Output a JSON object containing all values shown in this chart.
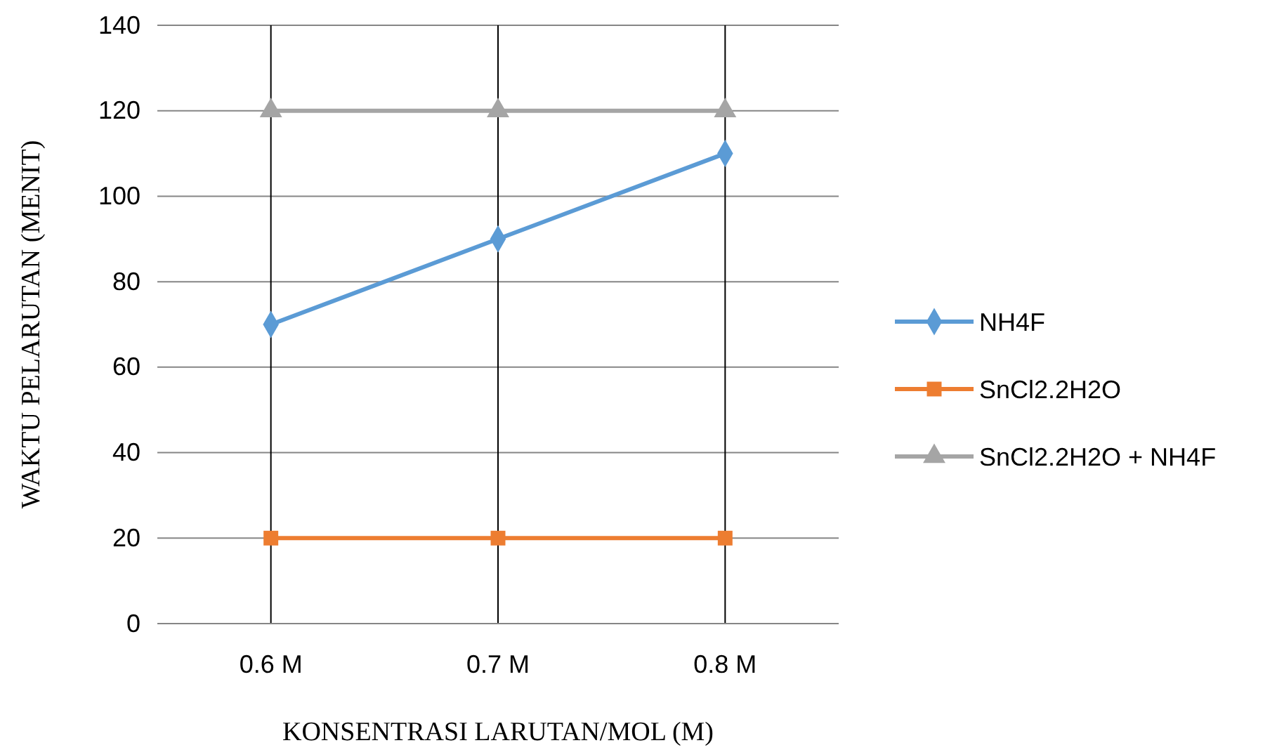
{
  "chart_data": {
    "type": "line",
    "xlabel": "KONSENTRASI LARUTAN/MOL (M)",
    "ylabel": "WAKTU PELARUTAN (MENIT)",
    "categories": [
      "0.6 M",
      "0.7 M",
      "0.8 M"
    ],
    "series": [
      {
        "name": "NH4F",
        "color": "#5b9bd5",
        "values": [
          70,
          90,
          110
        ],
        "marker": "diamond"
      },
      {
        "name": "SnCl2.2H2O",
        "color": "#ed7d31",
        "values": [
          20,
          20,
          20
        ],
        "marker": "square"
      },
      {
        "name": "SnCl2.2H2O + NH4F",
        "color": "#a5a5a5",
        "values": [
          120,
          120,
          120
        ],
        "marker": "triangle"
      }
    ],
    "ylim": [
      0,
      140
    ],
    "yticks": [
      0,
      20,
      40,
      60,
      80,
      100,
      120,
      140
    ],
    "grid": true,
    "legend": "right",
    "line_style": "solid"
  }
}
